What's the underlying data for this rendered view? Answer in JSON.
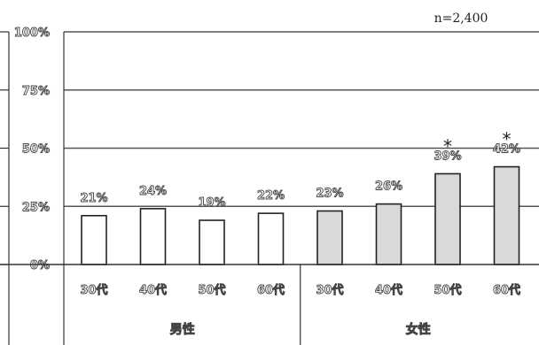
{
  "chart_data": {
    "type": "bar",
    "note": "n=2,400",
    "ylim": [
      0,
      100
    ],
    "yticks": [
      0,
      25,
      50,
      75,
      100
    ],
    "ytick_labels": [
      "0%",
      "25%",
      "50%",
      "75%",
      "100%"
    ],
    "groups": [
      {
        "label": "男性",
        "fill": "#ffffff",
        "categories": [
          "30代",
          "40代",
          "50代",
          "60代"
        ],
        "values": [
          21,
          24,
          19,
          22
        ],
        "value_labels": [
          "21%",
          "24%",
          "19%",
          "22%"
        ],
        "markers": [
          "",
          "",
          "",
          ""
        ]
      },
      {
        "label": "女性",
        "fill": "#d9d9d9",
        "categories": [
          "30代",
          "40代",
          "50代",
          "60代"
        ],
        "values": [
          23,
          26,
          39,
          42
        ],
        "value_labels": [
          "23%",
          "26%",
          "39%",
          "42%"
        ],
        "markers": [
          "",
          "",
          "*",
          "*"
        ]
      }
    ],
    "colors": {
      "bar_stroke": "#222222",
      "gridline": "#555555",
      "axis": "#333333"
    }
  }
}
